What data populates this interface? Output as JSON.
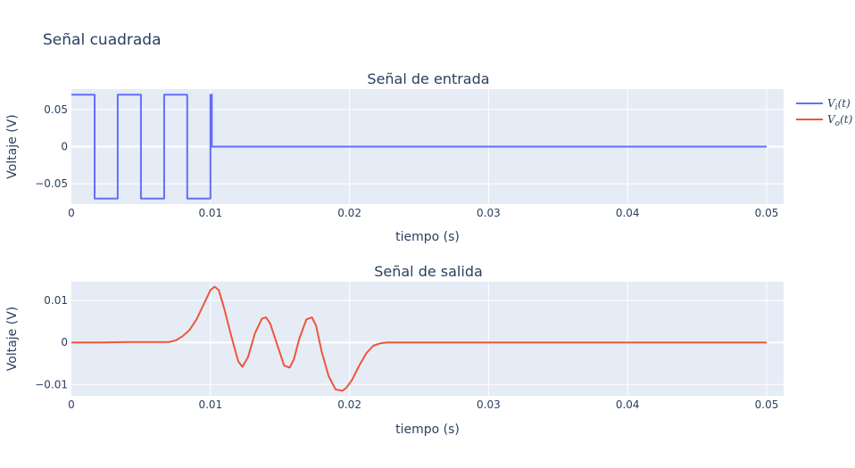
{
  "title": "Señal cuadrada",
  "colors": {
    "input": "#636efa",
    "output": "#ef553b"
  },
  "legend": [
    {
      "name": "V_i(t)",
      "main": "V",
      "sub": "i",
      "arg": "(t)",
      "color": "#636efa"
    },
    {
      "name": "V_o(t)",
      "main": "V",
      "sub": "o",
      "arg": "(t)",
      "color": "#ef553b"
    }
  ],
  "chart_data": [
    {
      "type": "line",
      "title": "Señal de entrada",
      "xlabel": "tiempo (s)",
      "ylabel": "Voltaje (V)",
      "xlim": [
        0,
        0.05
      ],
      "ylim": [
        -0.0775,
        0.0775
      ],
      "xticks": [
        0,
        0.01,
        0.02,
        0.03,
        0.04,
        0.05
      ],
      "xtick_labels": [
        "0",
        "0.01",
        "0.02",
        "0.03",
        "0.04",
        "0.05"
      ],
      "yticks": [
        0.05,
        0,
        -0.05
      ],
      "ytick_labels": [
        "0.05",
        "0",
        "−0.05"
      ],
      "series": [
        {
          "name": "V_i(t)",
          "color": "#636efa",
          "x": [
            0,
            0.00167,
            0.00167,
            0.00333,
            0.00333,
            0.005,
            0.005,
            0.00667,
            0.00667,
            0.00833,
            0.00833,
            0.01,
            0.01,
            0.0101,
            0.0101,
            0.05
          ],
          "y": [
            0.07,
            0.07,
            -0.07,
            -0.07,
            0.07,
            0.07,
            -0.07,
            -0.07,
            0.07,
            0.07,
            -0.07,
            -0.07,
            0.07,
            0.07,
            0,
            0
          ]
        }
      ]
    },
    {
      "type": "line",
      "title": "Señal de salida",
      "xlabel": "tiempo (s)",
      "ylabel": "Voltaje (V)",
      "xlim": [
        0,
        0.05
      ],
      "ylim": [
        -0.0127,
        0.0145
      ],
      "xticks": [
        0,
        0.01,
        0.02,
        0.03,
        0.04,
        0.05
      ],
      "xtick_labels": [
        "0",
        "0.01",
        "0.02",
        "0.03",
        "0.04",
        "0.05"
      ],
      "yticks": [
        0.01,
        0,
        -0.01
      ],
      "ytick_labels": [
        "0.01",
        "0",
        "−0.01"
      ],
      "series": [
        {
          "name": "V_o(t)",
          "color": "#ef553b",
          "x": [
            0,
            0.002,
            0.004,
            0.006,
            0.007,
            0.0075,
            0.008,
            0.0085,
            0.009,
            0.0095,
            0.01,
            0.0103,
            0.0106,
            0.011,
            0.0115,
            0.012,
            0.0123,
            0.0127,
            0.0132,
            0.0137,
            0.014,
            0.0143,
            0.0148,
            0.0153,
            0.0157,
            0.016,
            0.0164,
            0.0169,
            0.0173,
            0.0176,
            0.018,
            0.0185,
            0.019,
            0.0195,
            0.0198,
            0.0202,
            0.0207,
            0.0212,
            0.0217,
            0.0222,
            0.0227,
            0.023,
            0.025,
            0.03,
            0.04,
            0.05
          ],
          "y": [
            0,
            0,
            0.0001,
            0.0001,
            0.0001,
            0.0005,
            0.0015,
            0.003,
            0.0055,
            0.009,
            0.0125,
            0.0133,
            0.0125,
            0.008,
            0.0015,
            -0.0045,
            -0.0058,
            -0.0035,
            0.0022,
            0.0057,
            0.006,
            0.0045,
            -0.0005,
            -0.0055,
            -0.006,
            -0.004,
            0.001,
            0.0055,
            0.006,
            0.004,
            -0.0022,
            -0.008,
            -0.0112,
            -0.0115,
            -0.0107,
            -0.0088,
            -0.0055,
            -0.0026,
            -0.0008,
            -0.0002,
            0,
            0,
            0,
            0,
            0,
            0
          ]
        }
      ]
    }
  ]
}
